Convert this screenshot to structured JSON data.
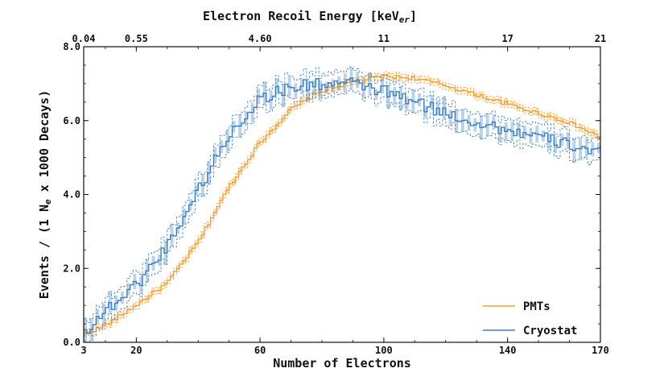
{
  "chart_data": {
    "type": "line",
    "style": "step-histogram-with-uncertainty-bands",
    "xlabel": "Number of Electrons",
    "ylabel": "Events / (1 N",
    "ylabel_sub": "e",
    "ylabel_tail": " x 1000 Decays)",
    "top_xlabel": "Electron Recoil Energy [keV",
    "top_xlabel_sub": "er",
    "top_xlabel_tail": "]",
    "xlim": [
      3,
      170
    ],
    "ylim": [
      0,
      8
    ],
    "x_ticks": [
      3,
      20,
      60,
      100,
      140,
      170
    ],
    "x_tick_labels": [
      "3",
      "20",
      "60",
      "100",
      "140",
      "170"
    ],
    "y_ticks": [
      0,
      2,
      4,
      6,
      8
    ],
    "y_tick_labels": [
      "0.0",
      "2.0",
      "4.0",
      "6.0",
      "8.0"
    ],
    "top_x_ticks": [
      3,
      20,
      60,
      100,
      140,
      170
    ],
    "top_x_tick_labels": [
      "0.04",
      "0.55",
      "4.60",
      "11",
      "17",
      "21"
    ],
    "legend_position": "bottom-right",
    "series": [
      {
        "name": "PMTs",
        "color": "#f5a030",
        "x": [
          3,
          10,
          20,
          30,
          40,
          50,
          60,
          70,
          80,
          90,
          100,
          110,
          120,
          130,
          140,
          150,
          160,
          170
        ],
        "values": [
          0.22,
          0.45,
          1.0,
          1.6,
          2.7,
          4.2,
          5.4,
          6.3,
          6.8,
          7.05,
          7.2,
          7.15,
          6.95,
          6.7,
          6.45,
          6.2,
          5.95,
          5.55
        ]
      },
      {
        "name": "Cryostat",
        "color": "#3a7fc0",
        "x": [
          3,
          10,
          20,
          30,
          40,
          50,
          60,
          70,
          80,
          90,
          100,
          110,
          120,
          130,
          140,
          150,
          160,
          170
        ],
        "values": [
          0.25,
          0.85,
          1.55,
          2.6,
          4.1,
          5.6,
          6.6,
          6.9,
          7.0,
          7.0,
          6.8,
          6.5,
          6.2,
          5.95,
          5.75,
          5.55,
          5.35,
          5.15
        ]
      }
    ]
  }
}
